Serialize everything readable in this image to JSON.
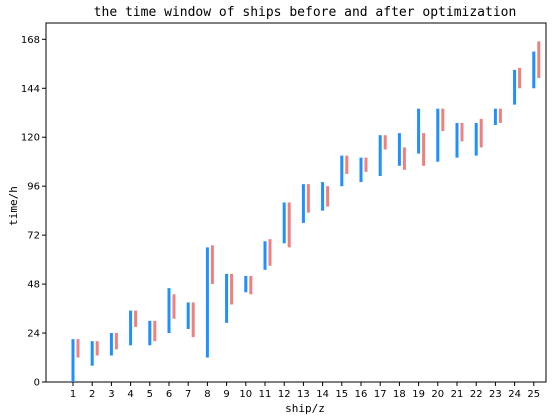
{
  "chart_data": {
    "type": "bar",
    "title": "the time window of ships before and after optimization",
    "xlabel": "ship/z",
    "ylabel": "time/h",
    "ylim": [
      0,
      176
    ],
    "y_ticks": [
      0,
      24,
      48,
      72,
      96,
      120,
      144,
      168
    ],
    "grid": false,
    "categories": [
      "1",
      "2",
      "3",
      "4",
      "5",
      "6",
      "7",
      "8",
      "9",
      "10",
      "11",
      "12",
      "13",
      "14",
      "15",
      "16",
      "17",
      "18",
      "19",
      "20",
      "21",
      "22",
      "23",
      "24",
      "25"
    ],
    "series": [
      {
        "color": "#1e90ff",
        "ranges": [
          [
            0,
            21
          ],
          [
            8,
            20
          ],
          [
            13,
            24
          ],
          [
            18,
            35
          ],
          [
            18,
            30
          ],
          [
            24,
            46
          ],
          [
            26,
            39
          ],
          [
            12,
            66
          ],
          [
            29,
            53
          ],
          [
            44,
            52
          ],
          [
            55,
            69
          ],
          [
            68,
            88
          ],
          [
            78,
            97
          ],
          [
            84,
            98
          ],
          [
            96,
            111
          ],
          [
            98,
            110
          ],
          [
            101,
            121
          ],
          [
            106,
            122
          ],
          [
            112,
            134
          ],
          [
            108,
            134
          ],
          [
            110,
            127
          ],
          [
            111,
            127
          ],
          [
            126,
            134
          ],
          [
            136,
            153
          ],
          [
            144,
            162
          ]
        ]
      },
      {
        "color": "#f08080",
        "ranges": [
          [
            12,
            21
          ],
          [
            13,
            20
          ],
          [
            16,
            24
          ],
          [
            27,
            35
          ],
          [
            20,
            30
          ],
          [
            31,
            43
          ],
          [
            22,
            39
          ],
          [
            48,
            67
          ],
          [
            38,
            53
          ],
          [
            43,
            52
          ],
          [
            57,
            70
          ],
          [
            66,
            88
          ],
          [
            83,
            97
          ],
          [
            86,
            96
          ],
          [
            102,
            111
          ],
          [
            103,
            110
          ],
          [
            114,
            121
          ],
          [
            104,
            115
          ],
          [
            106,
            122
          ],
          [
            123,
            134
          ],
          [
            118,
            127
          ],
          [
            115,
            129
          ],
          [
            127,
            134
          ],
          [
            144,
            154
          ],
          [
            149,
            167
          ]
        ]
      }
    ]
  }
}
